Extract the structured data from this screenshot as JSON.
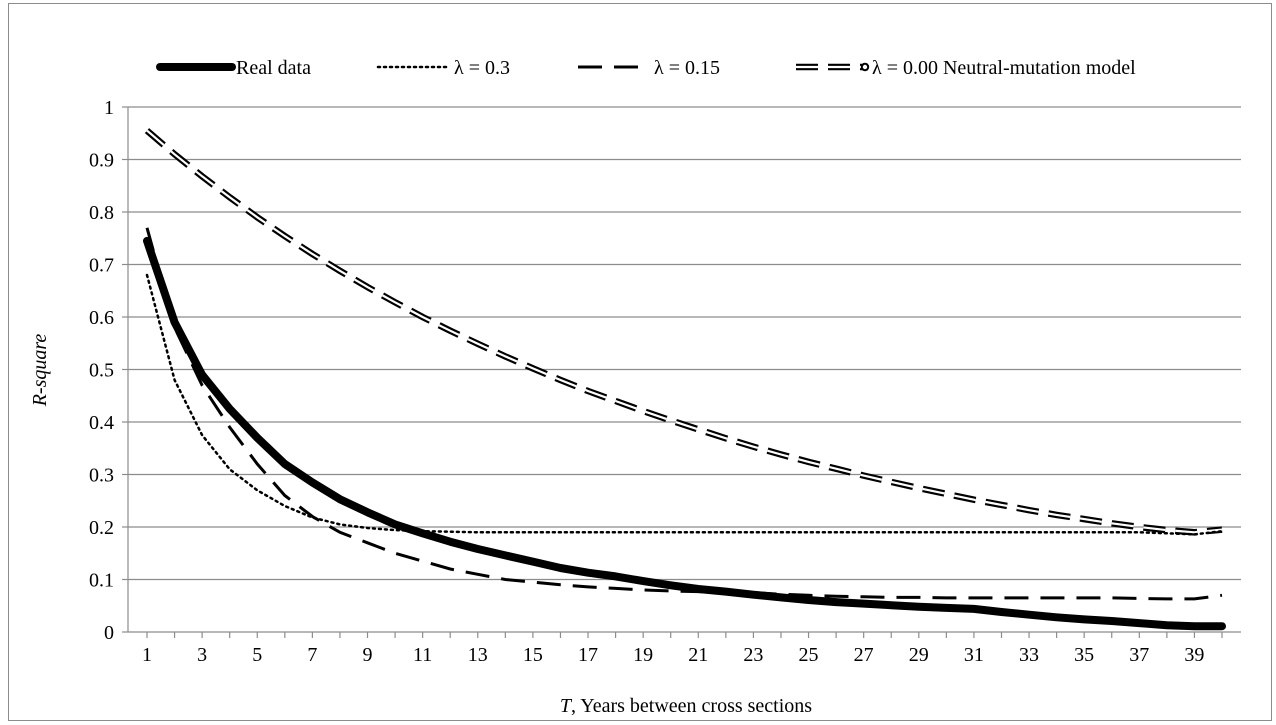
{
  "chart_data": {
    "type": "line",
    "xlabel_italic": "T",
    "xlabel_rest": ", Years between cross sections",
    "ylabel": "R-square",
    "ylim": [
      0,
      1
    ],
    "xlim": [
      1,
      40
    ],
    "y_ticks": [
      "0",
      "0.1",
      "0.2",
      "0.3",
      "0.4",
      "0.5",
      "0.6",
      "0.7",
      "0.8",
      "0.9",
      "1"
    ],
    "x_ticks": [
      "1",
      "3",
      "5",
      "7",
      "9",
      "11",
      "13",
      "15",
      "17",
      "19",
      "21",
      "23",
      "25",
      "27",
      "29",
      "31",
      "33",
      "35",
      "37",
      "39"
    ],
    "grid": "horizontal",
    "legend_position": "top",
    "x": [
      1,
      2,
      3,
      4,
      5,
      6,
      7,
      8,
      9,
      10,
      11,
      12,
      13,
      14,
      15,
      16,
      17,
      18,
      19,
      20,
      21,
      22,
      23,
      24,
      25,
      26,
      27,
      28,
      29,
      30,
      31,
      32,
      33,
      34,
      35,
      36,
      37,
      38,
      39,
      40
    ],
    "series": [
      {
        "name": "Real data",
        "style": "thick-solid",
        "values": [
          0.745,
          0.59,
          0.49,
          0.425,
          0.37,
          0.32,
          0.285,
          0.253,
          0.228,
          0.205,
          0.188,
          0.172,
          0.158,
          0.146,
          0.134,
          0.122,
          0.113,
          0.106,
          0.097,
          0.089,
          0.082,
          0.077,
          0.071,
          0.066,
          0.061,
          0.057,
          0.054,
          0.051,
          0.048,
          0.046,
          0.044,
          0.038,
          0.033,
          0.028,
          0.024,
          0.021,
          0.017,
          0.013,
          0.011,
          0.011
        ]
      },
      {
        "name": "λ = 0.3",
        "style": "dotted",
        "values": [
          0.68,
          0.48,
          0.375,
          0.31,
          0.27,
          0.24,
          0.218,
          0.205,
          0.198,
          0.194,
          0.192,
          0.191,
          0.19,
          0.19,
          0.19,
          0.19,
          0.19,
          0.19,
          0.19,
          0.19,
          0.19,
          0.19,
          0.19,
          0.19,
          0.19,
          0.19,
          0.19,
          0.19,
          0.19,
          0.19,
          0.19,
          0.19,
          0.19,
          0.19,
          0.19,
          0.19,
          0.19,
          0.188,
          0.186,
          0.192
        ]
      },
      {
        "name": "λ = 0.15",
        "style": "dashed",
        "values": [
          0.77,
          0.58,
          0.47,
          0.39,
          0.32,
          0.26,
          0.22,
          0.19,
          0.17,
          0.15,
          0.135,
          0.12,
          0.11,
          0.1,
          0.095,
          0.09,
          0.086,
          0.083,
          0.08,
          0.078,
          0.077,
          0.076,
          0.075,
          0.072,
          0.07,
          0.068,
          0.067,
          0.066,
          0.066,
          0.065,
          0.065,
          0.065,
          0.065,
          0.065,
          0.065,
          0.065,
          0.064,
          0.063,
          0.063,
          0.07
        ]
      },
      {
        "name": "λ = 0.00 Neutral-mutation model",
        "style": "double-dashed",
        "values": [
          0.955,
          0.91,
          0.868,
          0.828,
          0.79,
          0.754,
          0.72,
          0.688,
          0.657,
          0.628,
          0.6,
          0.574,
          0.549,
          0.525,
          0.502,
          0.48,
          0.459,
          0.44,
          0.421,
          0.403,
          0.386,
          0.369,
          0.353,
          0.338,
          0.324,
          0.311,
          0.298,
          0.286,
          0.274,
          0.263,
          0.252,
          0.242,
          0.232,
          0.223,
          0.215,
          0.207,
          0.2,
          0.194,
          0.19,
          0.195
        ]
      }
    ]
  }
}
